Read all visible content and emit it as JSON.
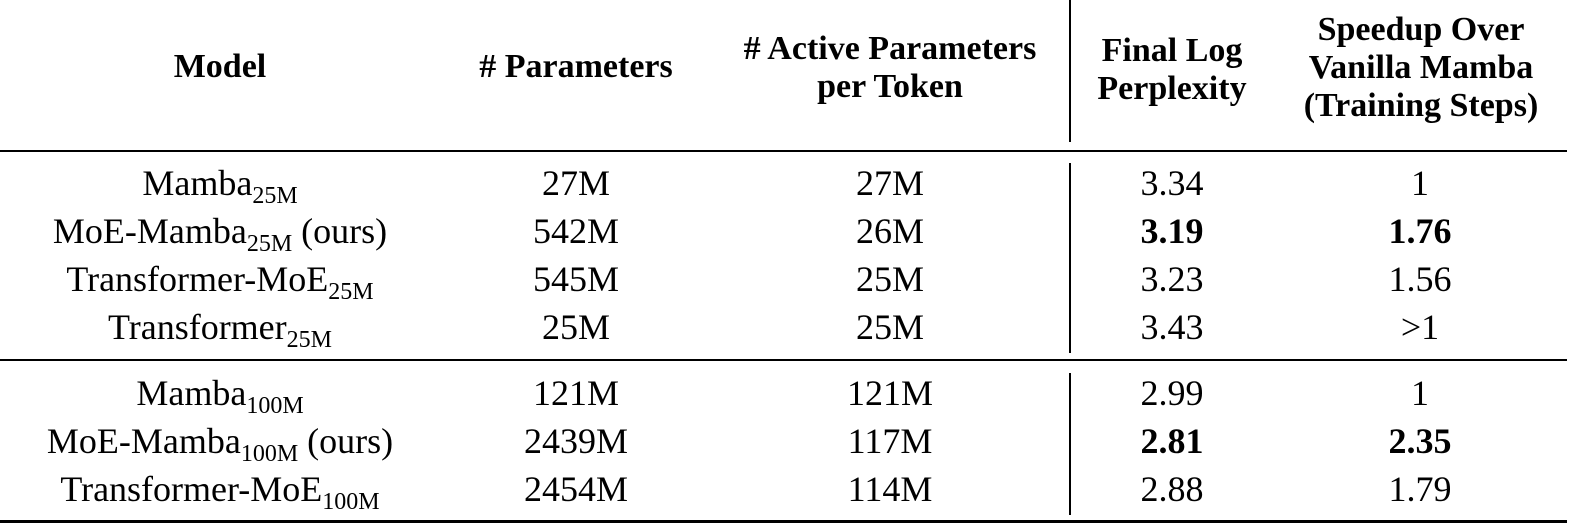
{
  "table": {
    "headers": {
      "model": "Model",
      "params": "# Parameters",
      "active_line1": "# Active Parameters",
      "active_line2": "per Token",
      "ppl_line1": "Final Log",
      "ppl_line2": "Perplexity",
      "speed_line1": "Speedup Over",
      "speed_line2": "Vanilla Mamba",
      "speed_line3": "(Training Steps)"
    },
    "group1": [
      {
        "model": "Mamba",
        "sub": "25M",
        "suffix": "",
        "params": "27M",
        "active": "27M",
        "ppl": "3.34",
        "speedup": "1",
        "bold": false
      },
      {
        "model": "MoE-Mamba",
        "sub": "25M",
        "suffix": " (ours)",
        "params": "542M",
        "active": "26M",
        "ppl": "3.19",
        "speedup": "1.76",
        "bold": true
      },
      {
        "model": "Transformer-MoE",
        "sub": "25M",
        "suffix": "",
        "params": "545M",
        "active": "25M",
        "ppl": "3.23",
        "speedup": "1.56",
        "bold": false
      },
      {
        "model": "Transformer",
        "sub": "25M",
        "suffix": "",
        "params": "25M",
        "active": "25M",
        "ppl": "3.43",
        "speedup": ">1",
        "bold": false
      }
    ],
    "group2": [
      {
        "model": "Mamba",
        "sub": "100M",
        "suffix": "",
        "params": "121M",
        "active": "121M",
        "ppl": "2.99",
        "speedup": "1",
        "bold": false
      },
      {
        "model": "MoE-Mamba",
        "sub": "100M",
        "suffix": " (ours)",
        "params": "2439M",
        "active": "117M",
        "ppl": "2.81",
        "speedup": "2.35",
        "bold": true
      },
      {
        "model": "Transformer-MoE",
        "sub": "100M",
        "suffix": "",
        "params": "2454M",
        "active": "114M",
        "ppl": "2.88",
        "speedup": "1.79",
        "bold": false
      }
    ]
  }
}
